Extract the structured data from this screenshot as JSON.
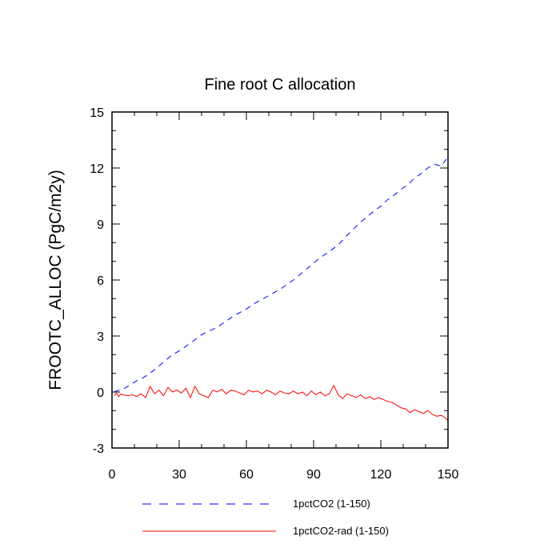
{
  "chart_data": {
    "type": "line",
    "title": "Fine root C allocation",
    "xlabel": "",
    "ylabel": "FROOTC_ALLOC  (PgC/m2y)",
    "xlim": [
      0,
      150
    ],
    "ylim": [
      -3,
      15
    ],
    "x_ticks": [
      0,
      30,
      60,
      90,
      120,
      150
    ],
    "y_ticks": [
      -3,
      0,
      3,
      6,
      9,
      12,
      15
    ],
    "legend_position": "bottom",
    "series": [
      {
        "name": "1pctCO2 (1-150)",
        "color": "#0000ff",
        "dash": "dashed",
        "x": [
          1,
          3,
          5,
          7,
          9,
          11,
          13,
          15,
          18,
          21,
          24,
          27,
          30,
          33,
          36,
          39,
          42,
          45,
          48,
          51,
          54,
          57,
          60,
          63,
          66,
          69,
          72,
          75,
          78,
          81,
          84,
          87,
          90,
          93,
          96,
          99,
          102,
          105,
          108,
          111,
          114,
          117,
          120,
          123,
          126,
          129,
          132,
          135,
          138,
          141,
          144,
          147,
          150
        ],
        "values": [
          0.0,
          0.1,
          0.15,
          0.3,
          0.45,
          0.6,
          0.7,
          0.85,
          1.1,
          1.4,
          1.7,
          2.0,
          2.2,
          2.45,
          2.7,
          3.0,
          3.2,
          3.35,
          3.55,
          3.8,
          4.05,
          4.25,
          4.45,
          4.7,
          4.9,
          5.1,
          5.3,
          5.5,
          5.75,
          6.0,
          6.3,
          6.6,
          6.9,
          7.2,
          7.45,
          7.7,
          8.0,
          8.4,
          8.75,
          9.1,
          9.4,
          9.7,
          9.95,
          10.3,
          10.55,
          10.85,
          11.1,
          11.45,
          11.7,
          12.0,
          12.2,
          12.1,
          12.6
        ]
      },
      {
        "name": "1pctCO2-rad (1-150)",
        "color": "#ff0000",
        "dash": "solid",
        "x": [
          1,
          2,
          3,
          4,
          5,
          7,
          9,
          11,
          13,
          15,
          17,
          19,
          21,
          23,
          25,
          27,
          29,
          31,
          33,
          35,
          37,
          39,
          41,
          43,
          45,
          47,
          49,
          51,
          53,
          55,
          57,
          59,
          61,
          63,
          65,
          67,
          69,
          71,
          73,
          75,
          77,
          79,
          81,
          83,
          85,
          87,
          89,
          91,
          93,
          95,
          97,
          99,
          101,
          103,
          105,
          107,
          109,
          111,
          113,
          115,
          117,
          119,
          121,
          123,
          125,
          127,
          129,
          131,
          133,
          135,
          137,
          139,
          141,
          143,
          145,
          147,
          149,
          150
        ],
        "values": [
          -0.2,
          -0.05,
          -0.25,
          -0.1,
          -0.15,
          -0.2,
          -0.15,
          -0.25,
          -0.1,
          -0.3,
          0.3,
          -0.1,
          0.1,
          -0.2,
          0.25,
          0.0,
          0.1,
          -0.05,
          0.2,
          -0.3,
          0.3,
          -0.1,
          -0.2,
          -0.3,
          0.1,
          0.0,
          0.15,
          -0.1,
          0.1,
          0.05,
          -0.05,
          -0.15,
          0.1,
          0.0,
          0.05,
          -0.1,
          0.1,
          0.0,
          -0.15,
          0.05,
          -0.05,
          -0.1,
          0.05,
          -0.1,
          0.0,
          -0.2,
          0.05,
          -0.15,
          0.0,
          -0.2,
          -0.1,
          0.35,
          -0.15,
          -0.35,
          -0.1,
          -0.2,
          -0.3,
          -0.15,
          -0.35,
          -0.25,
          -0.4,
          -0.3,
          -0.4,
          -0.5,
          -0.55,
          -0.7,
          -0.85,
          -0.9,
          -1.1,
          -0.95,
          -1.05,
          -1.15,
          -1.0,
          -1.2,
          -1.3,
          -1.25,
          -1.4,
          -1.55
        ]
      }
    ]
  }
}
